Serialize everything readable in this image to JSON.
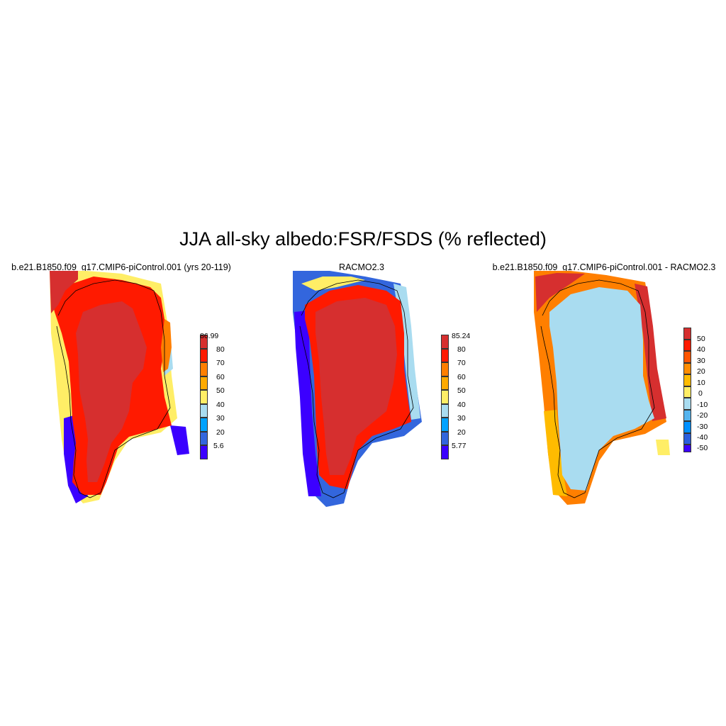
{
  "title": "JJA all-sky albedo:FSR/FSDS (% reflected)",
  "panels": [
    {
      "title": "b.e21.B1850.f09_g17.CMIP6-piControl.001 (yrs 20-119)",
      "colorbar": {
        "labels": [
          "86.99",
          "80",
          "70",
          "60",
          "50",
          "40",
          "30",
          "20",
          "5.6"
        ],
        "colors": [
          "#d62f2f",
          "#ff1a00",
          "#ff7f00",
          "#ffaa00",
          "#ffee66",
          "#a9dcf0",
          "#00a2ff",
          "#3366dd",
          "#3b00ff"
        ]
      }
    },
    {
      "title": "RACMO2.3",
      "colorbar": {
        "labels": [
          "85.24",
          "80",
          "70",
          "60",
          "50",
          "40",
          "30",
          "20",
          "5.77"
        ],
        "colors": [
          "#d62f2f",
          "#ff1a00",
          "#ff7f00",
          "#ffaa00",
          "#ffee66",
          "#a9dcf0",
          "#00a2ff",
          "#3366dd",
          "#3b00ff"
        ]
      }
    },
    {
      "title": "b.e21.B1850.f09_g17.CMIP6-piControl.001 - RACMO2.3",
      "colorbar": {
        "labels": [
          "50",
          "40",
          "30",
          "20",
          "10",
          "0",
          "-10",
          "-20",
          "-30",
          "-40",
          "-50"
        ],
        "colors": [
          "#d62f2f",
          "#ff1a00",
          "#ff5500",
          "#ff8c00",
          "#ffbb00",
          "#ffee66",
          "#a9dcf0",
          "#55b4ee",
          "#0090ff",
          "#2a5fdd",
          "#3b00ff"
        ]
      }
    }
  ]
}
